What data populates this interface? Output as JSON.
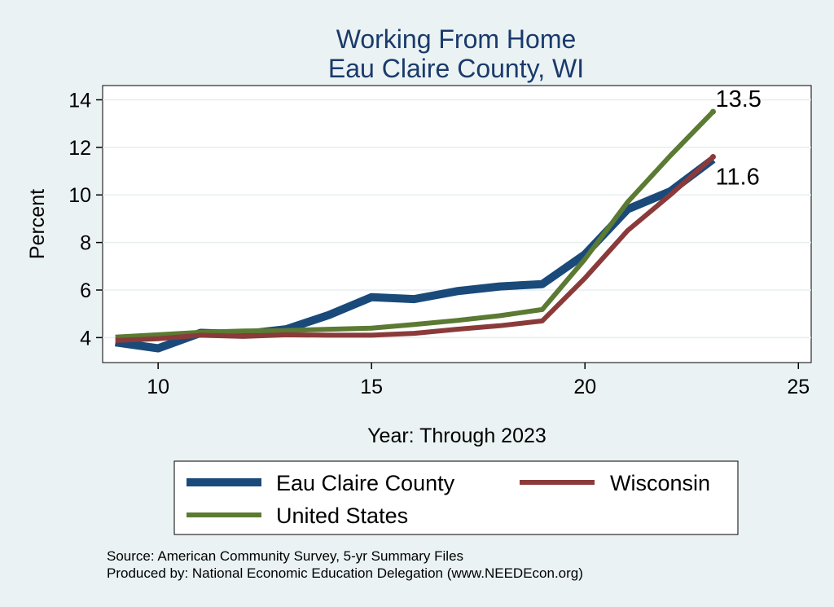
{
  "chart_data": {
    "type": "line",
    "title": [
      "Working From Home",
      "Eau Claire County, WI"
    ],
    "xlabel": "Year: Through 2023",
    "ylabel": "Percent",
    "xlim": [
      8.7,
      25.3
    ],
    "ylim": [
      2.95,
      14.6
    ],
    "xticks": [
      10,
      15,
      20,
      25
    ],
    "yticks": [
      4,
      6,
      8,
      10,
      12,
      14
    ],
    "grid": true,
    "series": [
      {
        "name": "Eau Claire County",
        "color": "#1a4a7a",
        "x": [
          9,
          10,
          11,
          12,
          13,
          14,
          15,
          16,
          17,
          18,
          19,
          20,
          21,
          22,
          23
        ],
        "y": [
          3.8,
          3.55,
          4.2,
          4.15,
          4.35,
          4.95,
          5.7,
          5.62,
          5.95,
          6.15,
          6.25,
          7.5,
          9.4,
          10.15,
          11.5
        ]
      },
      {
        "name": "Wisconsin",
        "color": "#8b3a3a",
        "x": [
          9,
          10,
          11,
          12,
          13,
          14,
          15,
          16,
          17,
          18,
          19,
          20,
          21,
          22,
          23
        ],
        "y": [
          3.88,
          3.95,
          4.1,
          4.05,
          4.12,
          4.1,
          4.1,
          4.18,
          4.35,
          4.5,
          4.7,
          6.5,
          8.5,
          10.0,
          11.6
        ]
      },
      {
        "name": "United States",
        "color": "#5b7a33",
        "x": [
          9,
          10,
          11,
          12,
          13,
          14,
          15,
          16,
          17,
          18,
          19,
          20,
          21,
          22,
          23
        ],
        "y": [
          4.02,
          4.12,
          4.22,
          4.28,
          4.3,
          4.35,
          4.4,
          4.55,
          4.72,
          4.92,
          5.18,
          7.3,
          9.7,
          11.65,
          13.5
        ]
      }
    ],
    "end_labels": [
      {
        "text": "13.5",
        "series": 2
      },
      {
        "text": "11.6",
        "series": 1
      }
    ],
    "legend": {
      "position": "bottom",
      "entries": [
        "Eau Claire County",
        "Wisconsin",
        "United States"
      ]
    },
    "source": [
      "Source: American Community Survey, 5-yr Summary Files",
      "Produced by: National Economic Education Delegation (www.NEEDEcon.org)"
    ]
  }
}
